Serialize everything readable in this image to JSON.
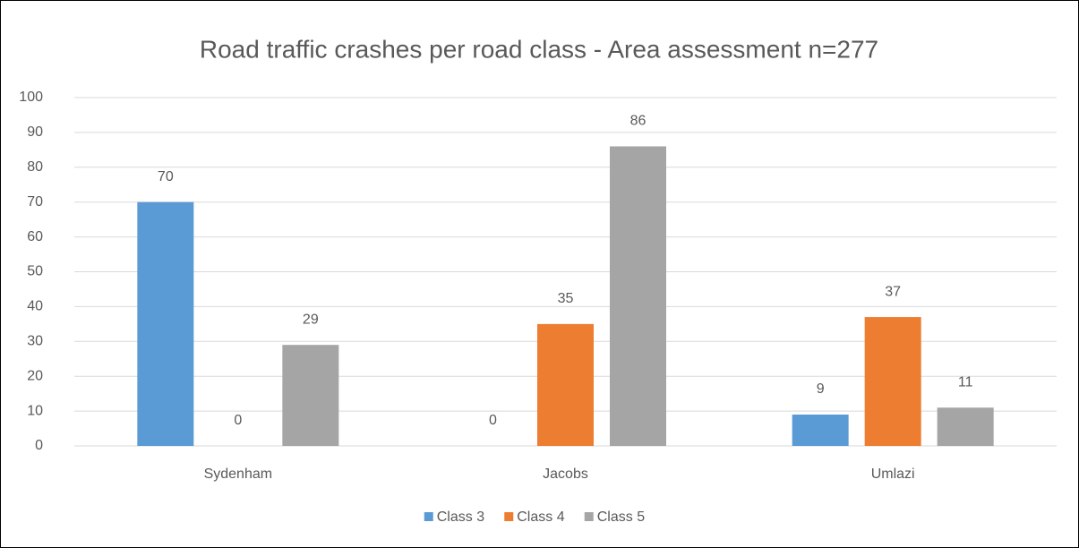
{
  "chart_data": {
    "type": "bar",
    "title": "Road traffic crashes per road class - Area assessment n=277",
    "categories": [
      "Sydenham",
      "Jacobs",
      "Umlazi"
    ],
    "series": [
      {
        "name": "Class 3",
        "color": "#5b9bd5",
        "values": [
          70,
          0,
          9
        ]
      },
      {
        "name": "Class 4",
        "color": "#ed7d31",
        "values": [
          0,
          35,
          37
        ]
      },
      {
        "name": "Class 5",
        "color": "#a5a5a5",
        "values": [
          29,
          86,
          11
        ]
      }
    ],
    "ylim": [
      0,
      100
    ],
    "yticks": [
      0,
      10,
      20,
      30,
      40,
      50,
      60,
      70,
      80,
      90,
      100
    ],
    "grid": true,
    "legend": "bottom"
  }
}
